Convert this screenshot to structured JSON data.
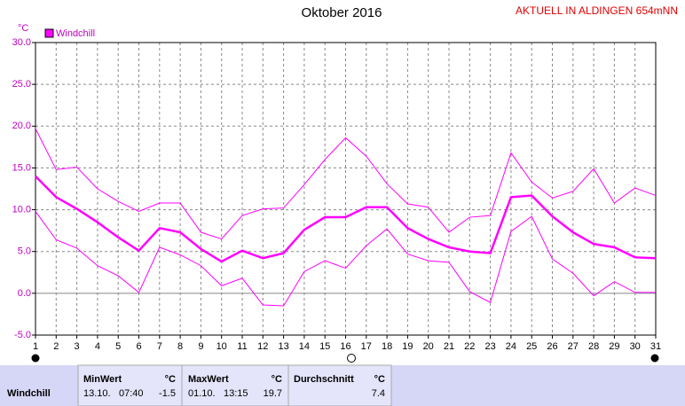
{
  "chart_data": {
    "type": "line",
    "title": "Oktober 2016",
    "station": "AKTUELL IN ALDINGEN 654mNN",
    "y_unit": "°C",
    "x": [
      1,
      2,
      3,
      4,
      5,
      6,
      7,
      8,
      9,
      10,
      11,
      12,
      13,
      14,
      15,
      16,
      17,
      18,
      19,
      20,
      21,
      22,
      23,
      24,
      25,
      26,
      27,
      28,
      29,
      30,
      31
    ],
    "xlim": [
      1,
      31
    ],
    "xticks": [
      1,
      2,
      3,
      4,
      5,
      6,
      7,
      8,
      9,
      10,
      11,
      12,
      13,
      14,
      15,
      16,
      17,
      18,
      19,
      20,
      21,
      22,
      23,
      24,
      25,
      26,
      27,
      28,
      29,
      30,
      31
    ],
    "ylim": [
      -5,
      30
    ],
    "yticks": [
      {
        "value": -5,
        "label": "-5.0"
      },
      {
        "value": 0,
        "label": "0.0"
      },
      {
        "value": 5,
        "label": "5.0"
      },
      {
        "value": 10,
        "label": "10.0"
      },
      {
        "value": 15,
        "label": "15.0"
      },
      {
        "value": 20,
        "label": "20.0"
      },
      {
        "value": 25,
        "label": "25.0"
      },
      {
        "value": 30,
        "label": "30.0"
      }
    ],
    "grid": true,
    "legend": "top-left",
    "series": [
      {
        "name": "Windchill",
        "color": "#ff00ff",
        "line_width": 2.5,
        "values": [
          14.0,
          11.5,
          10.1,
          8.5,
          6.7,
          5.1,
          7.8,
          7.3,
          5.3,
          3.8,
          5.1,
          4.2,
          4.8,
          7.6,
          9.1,
          9.1,
          10.3,
          10.3,
          7.8,
          6.5,
          5.5,
          5.0,
          4.8,
          11.5,
          11.7,
          9.2,
          7.3,
          5.9,
          5.5,
          4.3,
          4.2
        ]
      },
      {
        "color": "#ff00ff",
        "line_width": 1,
        "values": [
          19.7,
          14.8,
          15.1,
          12.5,
          11.0,
          9.8,
          10.8,
          10.8,
          7.3,
          6.5,
          9.3,
          10.1,
          10.2,
          13.0,
          16.0,
          18.6,
          16.4,
          13.1,
          10.7,
          10.3,
          7.3,
          9.1,
          9.3,
          16.8,
          13.3,
          11.4,
          12.2,
          14.9,
          10.8,
          12.6,
          11.7
        ]
      },
      {
        "color": "#ff00ff",
        "line_width": 1,
        "values": [
          9.8,
          6.4,
          5.4,
          3.3,
          2.1,
          0.1,
          5.5,
          4.6,
          3.3,
          0.9,
          1.8,
          -1.4,
          -1.5,
          2.6,
          3.9,
          3.0,
          5.7,
          7.7,
          4.7,
          3.9,
          3.7,
          0.2,
          -1.1,
          7.4,
          9.2,
          4.1,
          2.4,
          -0.3,
          1.4,
          0.1,
          0.1
        ]
      }
    ]
  },
  "table": {
    "headers": [
      "MinWert",
      "°C",
      "MaxWert",
      "°C",
      "Durchschnitt",
      "°C"
    ],
    "row": {
      "label": "Windchill",
      "min_date": "13.10.",
      "min_time": "07:40",
      "min_value": "-1.5",
      "max_date": "01.10.",
      "max_time": "13:15",
      "max_value": "19.7",
      "avg_value": "7.4"
    }
  }
}
